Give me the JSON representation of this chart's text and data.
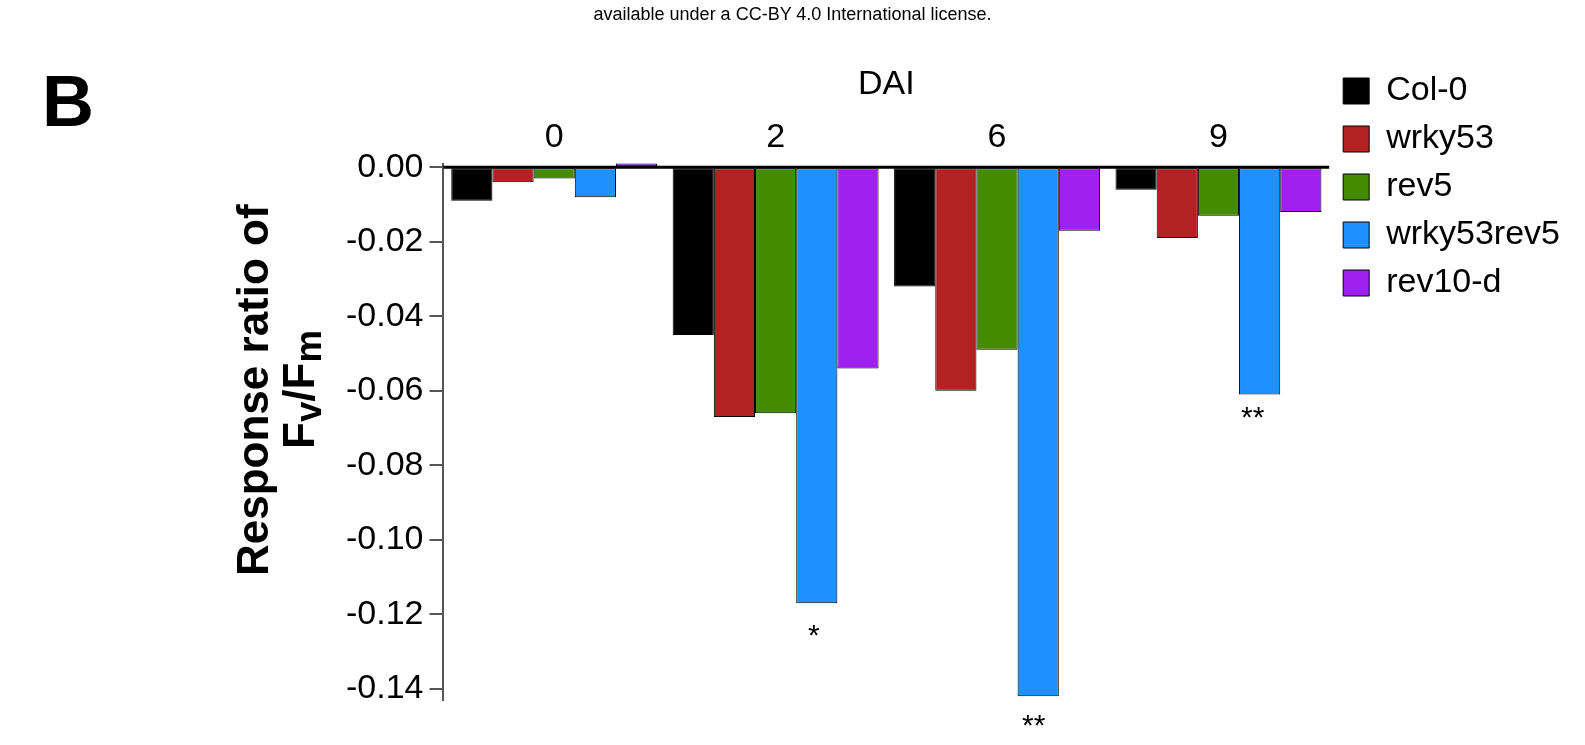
{
  "chart_data": {
    "type": "bar",
    "xlabel": "DAI",
    "ylabel": "Response ratio of F$_{v}$/F$_{m}$",
    "categories": [
      "0",
      "2",
      "6",
      "9"
    ],
    "series": [
      {
        "name": "Col-0",
        "color": "#000000",
        "values": [
          -0.009,
          -0.045,
          -0.032,
          -0.006
        ]
      },
      {
        "name": "wrky53",
        "color": "#b22222",
        "values": [
          -0.004,
          -0.067,
          -0.06,
          -0.019
        ]
      },
      {
        "name": "rev5",
        "color": "#458b00",
        "values": [
          -0.003,
          -0.066,
          -0.049,
          -0.013
        ]
      },
      {
        "name": "wrky53rev5",
        "color": "#1e90ff",
        "values": [
          -0.008,
          -0.117,
          -0.142,
          -0.061
        ]
      },
      {
        "name": "rev10-d",
        "color": "#a020f0",
        "values": [
          0.001,
          -0.054,
          -0.017,
          -0.012
        ]
      }
    ],
    "ylim": [
      -0.143,
      0.001
    ],
    "yticks": [
      {
        "value": 0,
        "label": "0.00"
      },
      {
        "value": -0.02,
        "label": "-0.02"
      },
      {
        "value": -0.04,
        "label": "-0.04"
      },
      {
        "value": -0.06,
        "label": "-0.06"
      },
      {
        "value": -0.08,
        "label": "-0.08"
      },
      {
        "value": -0.1,
        "label": "-0.10"
      },
      {
        "value": -0.12,
        "label": "-0.12"
      },
      {
        "value": -0.14,
        "label": "-0.14"
      }
    ],
    "grid": false,
    "legend": "top right",
    "annotations": [
      "available under a CC-BY 4.0 International license.",
      "B",
      "*",
      "**",
      "**"
    ]
  }
}
